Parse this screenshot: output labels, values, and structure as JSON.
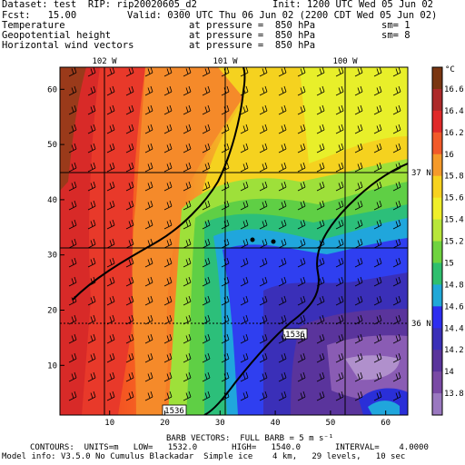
{
  "header": {
    "dataset": "Dataset: test  RIP: rip20020605_d2",
    "init": "Init: 1200 UTC Wed 05 Jun 02",
    "fcst": "Fcst:   15.00",
    "valid": "Valid: 0300 UTC Thu 06 Jun 02 (2200 CDT Wed 05 Jun 02)",
    "rows": [
      {
        "field": "Temperature",
        "level": "at pressure =  850 hPa",
        "sm": "sm= 1"
      },
      {
        "field": "Geopotential height",
        "level": "at pressure =  850 hPa",
        "sm": "sm= 8"
      },
      {
        "field": "Horizontal wind vectors",
        "level": "at pressure =  850 hPa",
        "sm": ""
      }
    ]
  },
  "footer": {
    "barb": "BARB VECTORS:  FULL BARB = 5 m s⁻¹",
    "contours": "CONTOURS:  UNITS=m   LOW=   1532.0       HIGH=   1540.0       INTERVAL=    4.0000",
    "model": "Model info: V3.5.0 No Cumulus Blackadar  Simple ice    4 km,   29 levels,   10 sec"
  },
  "chart_data": {
    "type": "heatmap",
    "field": "Temperature",
    "x_ticks": [
      "10",
      "20",
      "30",
      "40",
      "50",
      "60"
    ],
    "y_ticks": [
      "10",
      "20",
      "30",
      "40",
      "50",
      "60"
    ],
    "xlim": [
      1,
      64
    ],
    "ylim": [
      1,
      64
    ],
    "lon_labels": [
      "102 W",
      "101 W",
      "100 W"
    ],
    "lat_labels": [
      "37 N",
      "36 N"
    ],
    "colorbar": {
      "unit": "°C",
      "labels": [
        "16.6",
        "16.4",
        "16.2",
        "16",
        "15.8",
        "15.6",
        "15.4",
        "15.2",
        "15",
        "14.8",
        "14.6",
        "14.4",
        "14.2",
        "14",
        "13.8"
      ],
      "colors": [
        "#7a3612",
        "#ad2a2a",
        "#e02a2a",
        "#f25a2a",
        "#f59a2a",
        "#f7d21f",
        "#f0ef2a",
        "#b8e63a",
        "#6fd33f",
        "#2fbf6e",
        "#20a8d8",
        "#2d2df0",
        "#3a2fb8",
        "#5a349c",
        "#7a4aa5",
        "#9a78c0"
      ]
    },
    "height_contours": [
      {
        "label": "1536"
      },
      {
        "label": "1536"
      }
    ]
  }
}
